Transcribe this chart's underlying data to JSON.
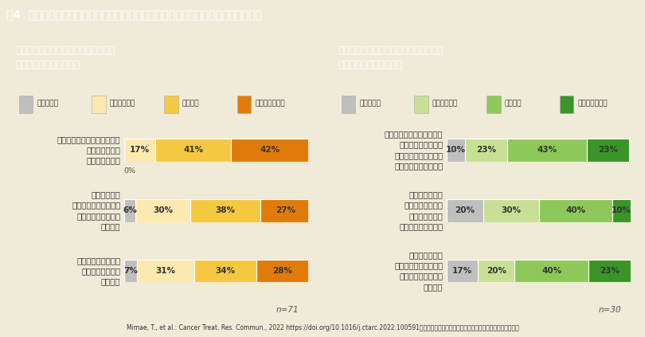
{
  "title": "図4  アンケート調査結果　術後補助化学療法に対する患者の考え：共感のポイント",
  "title_bg": "#236b8e",
  "title_color": "#ffffff",
  "bg_color": "#f0ead8",
  "footer": "Mimae, T., et al.: Cancer Treat. Res. Commun., 2022 https://doi.org/10.1016/j.ctarc.2022.100591　本研究はアストラゼネカ株式会社の支援により行われた。",
  "left_panel": {
    "title": "「術後補助化学療法を受ける」意見の\nどの部分に共感したか？",
    "title_bg": "#e07b0a",
    "title_color": "#ffffff",
    "panel_bg": "#ffffff",
    "n_label": "n=71",
    "legend_labels": [
      "共感しない",
      "やや共感した",
      "共感した",
      "非常に共感した"
    ],
    "legend_colors": [
      "#c0bfbf",
      "#fce9b0",
      "#f5c842",
      "#e07b0a"
    ],
    "categories": [
      "再発を年単位で遅らせるなら\n今やれることは\nやっておきたい",
      "再発によって\n自分の生活や気持ちが\n変わってしまうのは\n避けたい",
      "術後補助化学療法の\n副作用があるのは\n仕方ない"
    ],
    "data": [
      [
        0,
        17,
        41,
        42
      ],
      [
        6,
        30,
        38,
        27
      ],
      [
        7,
        31,
        34,
        28
      ]
    ],
    "bar_colors": [
      "#c0bfbf",
      "#fce9b0",
      "#f5c842",
      "#e07b0a"
    ],
    "show_zero": true
  },
  "right_panel": {
    "title": "「術後補助化学療法を受けない」意見の\nどの部分に共感したか？",
    "title_bg": "#6aaa5a",
    "title_color": "#ffffff",
    "panel_bg": "#ffffff",
    "n_label": "n=30",
    "legend_labels": [
      "共感しない",
      "やや共感した",
      "共感した",
      "非常に共感した"
    ],
    "legend_colors": [
      "#c0bfbf",
      "#c8e096",
      "#8ec85a",
      "#3a9428"
    ],
    "categories": [
      "手術だけでも治る可能性や\n術後補助化学療法を\n受けても受けなくても\n再発する可能性がある",
      "再発を年単位で\n遅らせるとしても\n抗がん剤治療は\n再発してからでよい",
      "副作用によって\n自分の生活や気持ちが\n変わってしまうのは\n避けたい"
    ],
    "data": [
      [
        10,
        23,
        43,
        23
      ],
      [
        20,
        30,
        40,
        10
      ],
      [
        17,
        20,
        40,
        23
      ]
    ],
    "bar_colors": [
      "#c0bfbf",
      "#c8e096",
      "#8ec85a",
      "#3a9428"
    ]
  }
}
